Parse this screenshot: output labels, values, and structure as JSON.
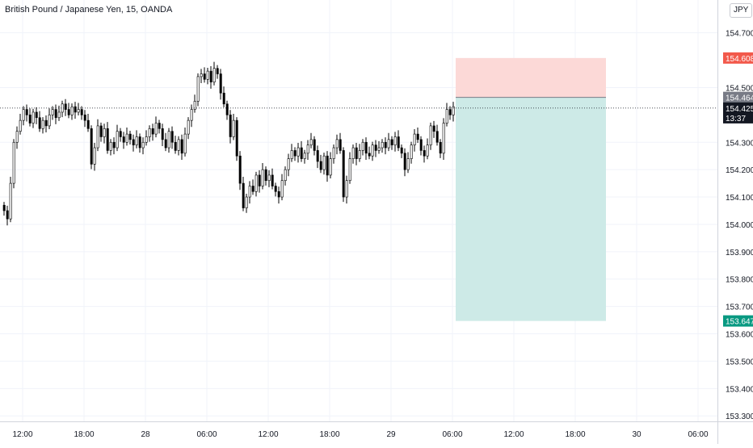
{
  "header": {
    "symbol_title": "British Pound / Japanese Yen, 15, OANDA",
    "currency": "JPY"
  },
  "chart_data": {
    "type": "candlestick",
    "symbol": "British Pound / Japanese Yen",
    "interval": "15",
    "source": "OANDA",
    "price_axis": {
      "ticks": [
        "154.700",
        "154.500",
        "154.300",
        "154.200",
        "154.100",
        "154.000",
        "153.900",
        "153.800",
        "153.700",
        "153.600",
        "153.500",
        "153.400",
        "153.300"
      ],
      "range": [
        153.28,
        154.82
      ]
    },
    "time_axis": {
      "ticks": [
        "12:00",
        "18:00",
        "28",
        "06:00",
        "12:00",
        "18:00",
        "29",
        "06:00",
        "12:00",
        "18:00",
        "30",
        "06:00"
      ]
    },
    "current_price": "154.425",
    "countdown": "13:37",
    "position": {
      "side": "short",
      "entry": "154.464",
      "stop": "154.608",
      "target": "153.647",
      "colors": {
        "stop_zone": "#fcd9d7",
        "target_zone": "#cdeae7",
        "stop_label": "#f2594b",
        "target_label": "#089981",
        "entry_label": "#787b86"
      }
    },
    "close_series": [
      154.05,
      154.02,
      154.15,
      154.3,
      154.34,
      154.38,
      154.42,
      154.4,
      154.37,
      154.41,
      154.39,
      154.35,
      154.38,
      154.36,
      154.4,
      154.42,
      154.39,
      154.41,
      154.44,
      154.42,
      154.4,
      154.43,
      154.41,
      154.42,
      154.4,
      154.38,
      154.35,
      154.22,
      154.28,
      154.36,
      154.32,
      154.35,
      154.27,
      154.3,
      154.28,
      154.34,
      154.32,
      154.3,
      154.33,
      154.31,
      154.29,
      154.32,
      154.28,
      154.3,
      154.32,
      154.35,
      154.33,
      154.37,
      154.35,
      154.31,
      154.28,
      154.34,
      154.3,
      154.27,
      154.31,
      154.26,
      154.33,
      154.38,
      154.42,
      154.45,
      154.54,
      154.55,
      154.53,
      154.56,
      154.52,
      154.57,
      154.55,
      154.48,
      154.44,
      154.4,
      154.32,
      154.38,
      154.25,
      154.15,
      154.06,
      154.1,
      154.14,
      154.12,
      154.18,
      154.14,
      154.2,
      154.16,
      154.18,
      154.14,
      154.12,
      154.1,
      154.16,
      154.2,
      154.24,
      154.27,
      154.25,
      154.28,
      154.24,
      154.26,
      154.29,
      154.31,
      154.27,
      154.23,
      154.2,
      154.25,
      154.18,
      154.24,
      154.28,
      154.31,
      154.27,
      154.1,
      154.16,
      154.24,
      154.28,
      154.24,
      154.27,
      154.3,
      154.26,
      154.25,
      154.29,
      154.27,
      154.28,
      154.3,
      154.28,
      154.31,
      154.29,
      154.32,
      154.28,
      154.26,
      154.2,
      154.24,
      154.29,
      154.33,
      154.31,
      154.27,
      154.25,
      154.29,
      154.36,
      154.34,
      154.3,
      154.26,
      154.37,
      154.42,
      154.4,
      154.43
    ]
  }
}
